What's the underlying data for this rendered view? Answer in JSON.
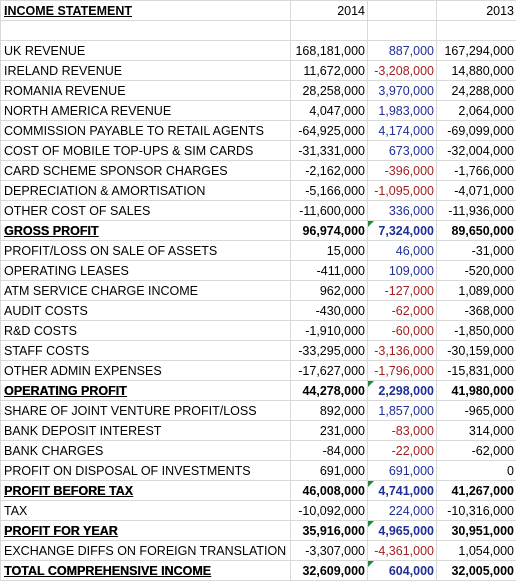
{
  "sheet": {
    "headers": {
      "label": "INCOME STATEMENT",
      "y2014": "2014",
      "diff": "",
      "y2013": "2013"
    },
    "rows": [
      {
        "label": "UK REVENUE",
        "y2014": "168,181,000",
        "diff": "887,000",
        "dir": "pos",
        "y2013": "167,294,000",
        "bold": false,
        "flag": false
      },
      {
        "label": "IRELAND REVENUE",
        "y2014": "11,672,000",
        "diff": "-3,208,000",
        "dir": "neg",
        "y2013": "14,880,000",
        "bold": false,
        "flag": false
      },
      {
        "label": "ROMANIA REVENUE",
        "y2014": "28,258,000",
        "diff": "3,970,000",
        "dir": "pos",
        "y2013": "24,288,000",
        "bold": false,
        "flag": false
      },
      {
        "label": "NORTH AMERICA REVENUE",
        "y2014": "4,047,000",
        "diff": "1,983,000",
        "dir": "pos",
        "y2013": "2,064,000",
        "bold": false,
        "flag": false
      },
      {
        "label": "COMMISSION PAYABLE TO RETAIL AGENTS",
        "y2014": "-64,925,000",
        "diff": "4,174,000",
        "dir": "pos",
        "y2013": "-69,099,000",
        "bold": false,
        "flag": false
      },
      {
        "label": "COST OF MOBILE TOP-UPS & SIM CARDS",
        "y2014": "-31,331,000",
        "diff": "673,000",
        "dir": "pos",
        "y2013": "-32,004,000",
        "bold": false,
        "flag": false
      },
      {
        "label": "CARD SCHEME SPONSOR CHARGES",
        "y2014": "-2,162,000",
        "diff": "-396,000",
        "dir": "neg",
        "y2013": "-1,766,000",
        "bold": false,
        "flag": false
      },
      {
        "label": "DEPRECIATION & AMORTISATION",
        "y2014": "-5,166,000",
        "diff": "-1,095,000",
        "dir": "neg",
        "y2013": "-4,071,000",
        "bold": false,
        "flag": false
      },
      {
        "label": "OTHER COST OF SALES",
        "y2014": "-11,600,000",
        "diff": "336,000",
        "dir": "pos",
        "y2013": "-11,936,000",
        "bold": false,
        "flag": false
      },
      {
        "label": "GROSS PROFIT",
        "y2014": "96,974,000",
        "diff": "7,324,000",
        "dir": "pos",
        "y2013": "89,650,000",
        "bold": true,
        "flag": true
      },
      {
        "label": "PROFIT/LOSS ON SALE OF ASSETS",
        "y2014": "15,000",
        "diff": "46,000",
        "dir": "pos",
        "y2013": "-31,000",
        "bold": false,
        "flag": false
      },
      {
        "label": "OPERATING LEASES",
        "y2014": "-411,000",
        "diff": "109,000",
        "dir": "pos",
        "y2013": "-520,000",
        "bold": false,
        "flag": false
      },
      {
        "label": "ATM SERVICE CHARGE INCOME",
        "y2014": "962,000",
        "diff": "-127,000",
        "dir": "neg",
        "y2013": "1,089,000",
        "bold": false,
        "flag": false
      },
      {
        "label": "AUDIT COSTS",
        "y2014": "-430,000",
        "diff": "-62,000",
        "dir": "neg",
        "y2013": "-368,000",
        "bold": false,
        "flag": false
      },
      {
        "label": "R&D COSTS",
        "y2014": "-1,910,000",
        "diff": "-60,000",
        "dir": "neg",
        "y2013": "-1,850,000",
        "bold": false,
        "flag": false
      },
      {
        "label": "STAFF COSTS",
        "y2014": "-33,295,000",
        "diff": "-3,136,000",
        "dir": "neg",
        "y2013": "-30,159,000",
        "bold": false,
        "flag": false
      },
      {
        "label": "OTHER ADMIN EXPENSES",
        "y2014": "-17,627,000",
        "diff": "-1,796,000",
        "dir": "neg",
        "y2013": "-15,831,000",
        "bold": false,
        "flag": false
      },
      {
        "label": "OPERATING PROFIT",
        "y2014": "44,278,000",
        "diff": "2,298,000",
        "dir": "pos",
        "y2013": "41,980,000",
        "bold": true,
        "flag": true
      },
      {
        "label": "SHARE OF JOINT VENTURE PROFIT/LOSS",
        "y2014": "892,000",
        "diff": "1,857,000",
        "dir": "pos",
        "y2013": "-965,000",
        "bold": false,
        "flag": false
      },
      {
        "label": "BANK DEPOSIT INTEREST",
        "y2014": "231,000",
        "diff": "-83,000",
        "dir": "neg",
        "y2013": "314,000",
        "bold": false,
        "flag": false
      },
      {
        "label": "BANK CHARGES",
        "y2014": "-84,000",
        "diff": "-22,000",
        "dir": "neg",
        "y2013": "-62,000",
        "bold": false,
        "flag": false
      },
      {
        "label": "PROFIT ON DISPOSAL OF INVESTMENTS",
        "y2014": "691,000",
        "diff": "691,000",
        "dir": "pos",
        "y2013": "0",
        "bold": false,
        "flag": false
      },
      {
        "label": "PROFIT BEFORE TAX",
        "y2014": "46,008,000",
        "diff": "4,741,000",
        "dir": "pos",
        "y2013": "41,267,000",
        "bold": true,
        "flag": true
      },
      {
        "label": "TAX",
        "y2014": "-10,092,000",
        "diff": "224,000",
        "dir": "pos",
        "y2013": "-10,316,000",
        "bold": false,
        "flag": false
      },
      {
        "label": "PROFIT FOR YEAR",
        "y2014": "35,916,000",
        "diff": "4,965,000",
        "dir": "pos",
        "y2013": "30,951,000",
        "bold": true,
        "flag": true
      },
      {
        "label": "EXCHANGE DIFFS ON FOREIGN TRANSLATION",
        "y2014": "-3,307,000",
        "diff": "-4,361,000",
        "dir": "neg",
        "y2013": "1,054,000",
        "bold": false,
        "flag": false
      },
      {
        "label": "TOTAL COMPREHENSIVE INCOME",
        "y2014": "32,609,000",
        "diff": "604,000",
        "dir": "pos",
        "y2013": "32,005,000",
        "bold": true,
        "flag": true
      }
    ]
  },
  "colors": {
    "positive": "#1f2f96",
    "negative": "#a31f1f",
    "flag": "#1e8b3a",
    "grid": "#d9d9d9"
  }
}
